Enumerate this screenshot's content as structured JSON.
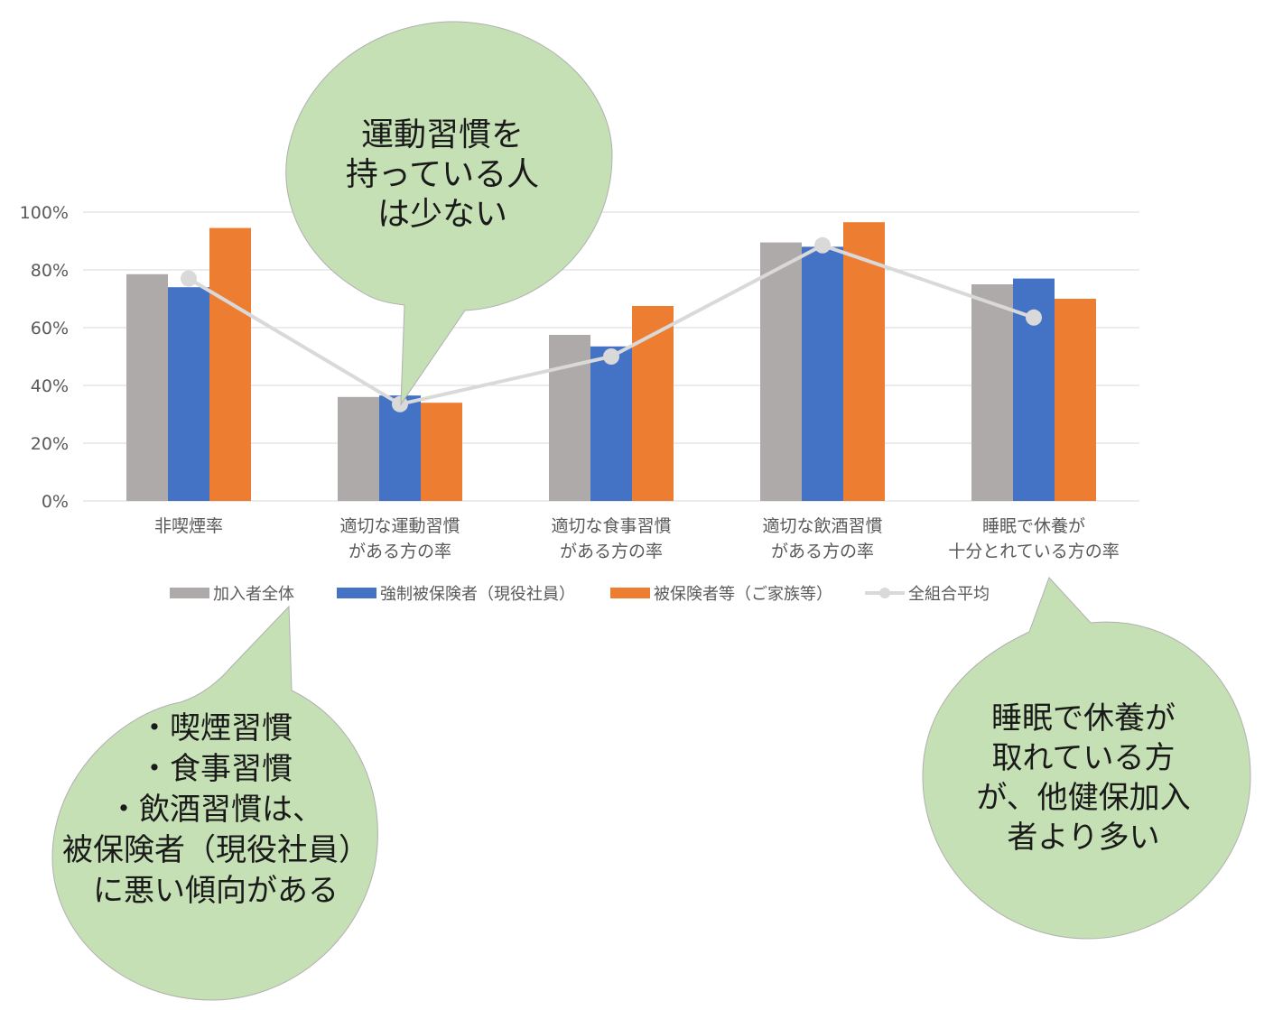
{
  "chart_data": {
    "type": "bar",
    "categories": [
      [
        "非喫煙率"
      ],
      [
        "適切な運動習慣",
        "がある方の率"
      ],
      [
        "適切な食事習慣",
        "がある方の率"
      ],
      [
        "適切な飲酒習慣",
        "がある方の率"
      ],
      [
        "睡眠で休養が",
        "十分とれている方の率"
      ]
    ],
    "series": [
      {
        "name": "加入者全体",
        "color": "#aeaaaa",
        "values": [
          78.5,
          36,
          57.5,
          89.5,
          75
        ]
      },
      {
        "name": "強制被保険者（現役社員）",
        "color": "#4472c4",
        "values": [
          74,
          36.5,
          53.5,
          88,
          77
        ]
      },
      {
        "name": "被保険者等（ご家族等）",
        "color": "#ed7d31",
        "values": [
          94.5,
          34,
          67.5,
          96.5,
          70
        ]
      }
    ],
    "line": {
      "name": "全組合平均",
      "color": "#d9d9d9",
      "values": [
        77,
        33.5,
        50,
        88.5,
        63.5
      ]
    },
    "ylim": [
      0,
      100
    ],
    "yticks": [
      "0%",
      "20%",
      "40%",
      "60%",
      "80%",
      "100%"
    ],
    "grid": true,
    "legend_position": "bottom"
  },
  "callouts": {
    "exercise": [
      "運動習慣を",
      "持っている人",
      "は少ない"
    ],
    "employees": [
      "・喫煙習慣",
      "・食事習慣",
      "・飲酒習慣は、",
      "被保険者（現役社員）",
      "に悪い傾向がある"
    ],
    "sleep": [
      "睡眠で休養が",
      "取れている方",
      "が、他健保加入",
      "者より多い"
    ]
  },
  "colors": {
    "bubble_fill": "#c5e0b4",
    "gridline": "#d9d9d9",
    "axis_text": "#595959"
  }
}
